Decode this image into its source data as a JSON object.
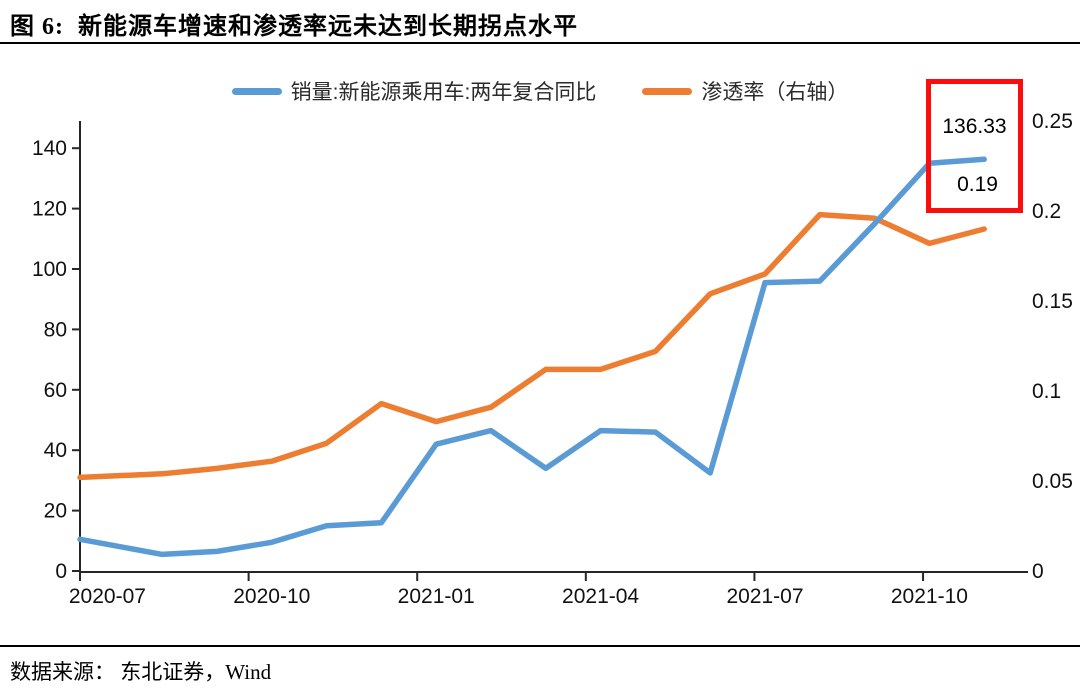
{
  "figure": {
    "title": "图 6:  新能源车增速和渗透率远未达到长期拐点水平",
    "source": "数据来源： 东北证券，Wind"
  },
  "chart_data": {
    "type": "line",
    "title": "新能源车增速和渗透率远未达到长期拐点水平",
    "x": [
      "2020-07",
      "2020-08",
      "2020-09",
      "2020-10",
      "2020-11",
      "2020-12",
      "2021-01",
      "2021-02",
      "2021-03",
      "2021-04",
      "2021-05",
      "2021-06",
      "2021-07",
      "2021-08",
      "2021-09",
      "2021-10",
      "2021-11"
    ],
    "x_tick_labels": [
      "2020-07",
      "2020-10",
      "2021-01",
      "2021-04",
      "2021-07",
      "2021-10"
    ],
    "series": [
      {
        "name": "销量:新能源乘用车:两年复合同比",
        "axis": "left",
        "color": "#5B9BD5",
        "values": [
          10.5,
          5.5,
          6.5,
          9.5,
          15,
          16,
          42,
          46.5,
          34,
          46.5,
          46,
          32.5,
          95.5,
          96,
          115,
          135,
          136.33
        ]
      },
      {
        "name": "渗透率（右轴）",
        "axis": "right",
        "color": "#ED7D31",
        "values": [
          0.052,
          0.054,
          0.057,
          0.061,
          0.071,
          0.093,
          0.083,
          0.091,
          0.112,
          0.112,
          0.122,
          0.154,
          0.165,
          0.198,
          0.196,
          0.182,
          0.19
        ]
      }
    ],
    "left_axis": {
      "ticks": [
        0,
        20,
        40,
        60,
        80,
        100,
        120,
        140
      ],
      "range": [
        0,
        140
      ]
    },
    "right_axis": {
      "tick_labels": [
        "0",
        "0.05",
        "0.1",
        "0.15",
        "0.2",
        "0.25"
      ],
      "ticks": [
        0,
        0.05,
        0.1,
        0.15,
        0.2,
        0.25
      ],
      "range": [
        0,
        0.25
      ]
    },
    "grid": false,
    "legend_position": "top-center",
    "annotation": {
      "box_color": "#FB0D0D",
      "labels": [
        "136.33",
        "0.19"
      ]
    }
  }
}
